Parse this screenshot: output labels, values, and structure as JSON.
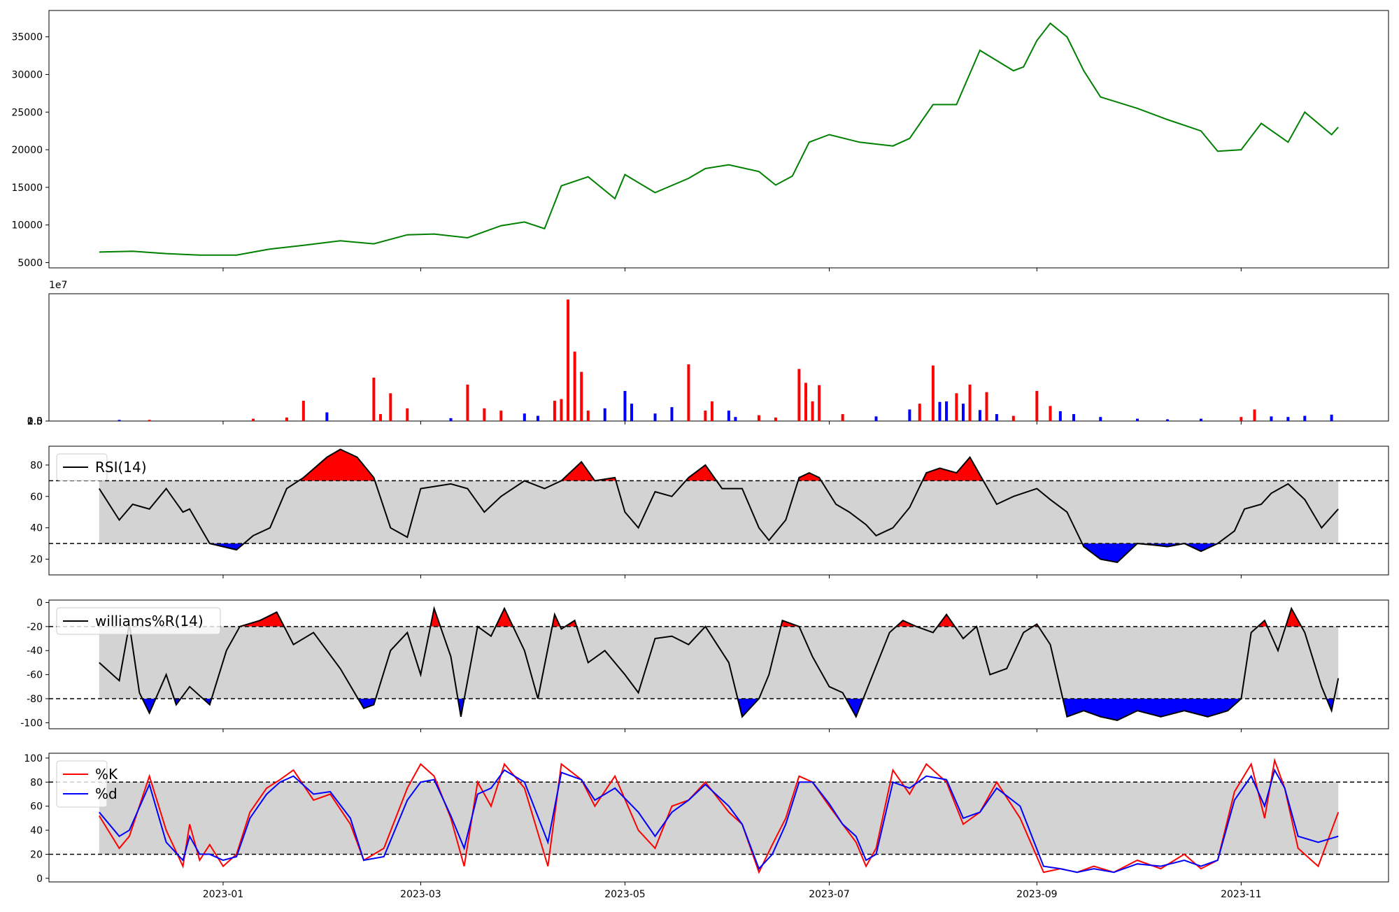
{
  "chart_data": [
    {
      "type": "line",
      "panel": "price",
      "ylim": [
        4300,
        38500
      ],
      "yticks": [
        "5000",
        "10000",
        "15000",
        "20000",
        "25000",
        "30000",
        "35000"
      ],
      "color": "#008000",
      "x": [
        "2022-11-25",
        "2022-12-05",
        "2022-12-15",
        "2022-12-25",
        "2023-01-05",
        "2023-01-15",
        "2023-01-25",
        "2023-02-05",
        "2023-02-15",
        "2023-02-25",
        "2023-03-05",
        "2023-03-15",
        "2023-03-25",
        "2023-04-01",
        "2023-04-07",
        "2023-04-12",
        "2023-04-20",
        "2023-04-28",
        "2023-05-01",
        "2023-05-10",
        "2023-05-20",
        "2023-05-25",
        "2023-06-01",
        "2023-06-10",
        "2023-06-15",
        "2023-06-20",
        "2023-06-25",
        "2023-07-01",
        "2023-07-10",
        "2023-07-20",
        "2023-07-25",
        "2023-08-01",
        "2023-08-08",
        "2023-08-15",
        "2023-08-25",
        "2023-08-28",
        "2023-09-01",
        "2023-09-05",
        "2023-09-10",
        "2023-09-15",
        "2023-09-20",
        "2023-10-01",
        "2023-10-10",
        "2023-10-20",
        "2023-10-25",
        "2023-11-01",
        "2023-11-07",
        "2023-11-15",
        "2023-11-20",
        "2023-11-28",
        "2023-11-30"
      ],
      "values": [
        6400,
        6500,
        6200,
        6000,
        6000,
        6800,
        7300,
        7900,
        7500,
        8700,
        8800,
        8300,
        9900,
        10400,
        9500,
        15200,
        16400,
        13500,
        16700,
        14300,
        16200,
        17500,
        18000,
        17100,
        15300,
        16500,
        21000,
        22000,
        21000,
        20500,
        21500,
        26000,
        26000,
        33200,
        30500,
        31000,
        34500,
        36800,
        35000,
        30500,
        27000,
        25500,
        24000,
        22500,
        19800,
        20000,
        23500,
        21000,
        25000,
        22000,
        23000
      ]
    },
    {
      "type": "bar",
      "panel": "volume",
      "ylim": [
        0,
        22000000
      ],
      "yticks": [
        "0.0",
        "0.5",
        "1.0",
        "1.5",
        "2.0"
      ],
      "offset_label": "1e7",
      "colors": {
        "up": "#ff0000",
        "down": "#0000ff",
        "flat": "#000000"
      },
      "x": [
        "2022-12-01",
        "2022-12-10",
        "2023-01-10",
        "2023-01-20",
        "2023-01-25",
        "2023-02-01",
        "2023-02-15",
        "2023-02-17",
        "2023-02-20",
        "2023-02-25",
        "2023-03-10",
        "2023-03-15",
        "2023-03-20",
        "2023-03-25",
        "2023-04-01",
        "2023-04-05",
        "2023-04-10",
        "2023-04-12",
        "2023-04-14",
        "2023-04-16",
        "2023-04-18",
        "2023-04-20",
        "2023-04-25",
        "2023-05-01",
        "2023-05-03",
        "2023-05-10",
        "2023-05-15",
        "2023-05-20",
        "2023-05-25",
        "2023-05-27",
        "2023-06-01",
        "2023-06-03",
        "2023-06-10",
        "2023-06-15",
        "2023-06-22",
        "2023-06-24",
        "2023-06-26",
        "2023-06-28",
        "2023-07-05",
        "2023-07-15",
        "2023-07-25",
        "2023-07-28",
        "2023-08-01",
        "2023-08-03",
        "2023-08-05",
        "2023-08-08",
        "2023-08-10",
        "2023-08-12",
        "2023-08-15",
        "2023-08-17",
        "2023-08-20",
        "2023-08-25",
        "2023-09-01",
        "2023-09-05",
        "2023-09-08",
        "2023-09-12",
        "2023-09-20",
        "2023-10-01",
        "2023-10-10",
        "2023-10-20",
        "2023-11-01",
        "2023-11-05",
        "2023-11-10",
        "2023-11-15",
        "2023-11-20",
        "2023-11-28"
      ],
      "values": [
        200000,
        200000,
        400000,
        600000,
        3500000,
        1500000,
        7500000,
        1200000,
        4800000,
        2200000,
        500000,
        6300000,
        2200000,
        1800000,
        1300000,
        900000,
        3500000,
        3800000,
        21000000,
        12000000,
        8500000,
        1800000,
        2200000,
        5200000,
        3000000,
        1300000,
        2400000,
        9800000,
        1800000,
        3400000,
        1800000,
        700000,
        1000000,
        600000,
        9000000,
        6600000,
        3400000,
        6200000,
        1200000,
        800000,
        2000000,
        3000000,
        9600000,
        3300000,
        3400000,
        4800000,
        3000000,
        6300000,
        1900000,
        5000000,
        1200000,
        900000,
        5200000,
        2600000,
        1700000,
        1200000,
        700000,
        400000,
        300000,
        400000,
        700000,
        2000000,
        800000,
        700000,
        900000,
        1100000
      ],
      "directions": [
        "down",
        "up",
        "up",
        "up",
        "up",
        "down",
        "up",
        "up",
        "up",
        "up",
        "down",
        "up",
        "up",
        "up",
        "down",
        "down",
        "up",
        "up",
        "up",
        "up",
        "up",
        "up",
        "down",
        "down",
        "down",
        "down",
        "down",
        "up",
        "up",
        "up",
        "down",
        "down",
        "up",
        "up",
        "up",
        "up",
        "up",
        "up",
        "up",
        "down",
        "down",
        "up",
        "up",
        "down",
        "down",
        "up",
        "down",
        "up",
        "down",
        "up",
        "down",
        "up",
        "up",
        "up",
        "down",
        "down",
        "down",
        "down",
        "down",
        "down",
        "up",
        "up",
        "down",
        "down",
        "down",
        "down"
      ]
    },
    {
      "type": "line",
      "panel": "rsi",
      "ylim": [
        10,
        92
      ],
      "yticks": [
        "20",
        "40",
        "60",
        "80"
      ],
      "band": [
        30,
        70
      ],
      "series": [
        {
          "name": "RSI(14)",
          "color": "#000000"
        }
      ],
      "x": [
        "2022-11-25",
        "2022-12-01",
        "2022-12-05",
        "2022-12-10",
        "2022-12-15",
        "2022-12-20",
        "2022-12-22",
        "2022-12-28",
        "2023-01-05",
        "2023-01-10",
        "2023-01-15",
        "2023-01-20",
        "2023-01-25",
        "2023-02-01",
        "2023-02-05",
        "2023-02-10",
        "2023-02-15",
        "2023-02-20",
        "2023-02-25",
        "2023-03-01",
        "2023-03-10",
        "2023-03-15",
        "2023-03-20",
        "2023-03-25",
        "2023-04-01",
        "2023-04-07",
        "2023-04-12",
        "2023-04-18",
        "2023-04-22",
        "2023-04-28",
        "2023-05-01",
        "2023-05-05",
        "2023-05-10",
        "2023-05-15",
        "2023-05-20",
        "2023-05-25",
        "2023-05-30",
        "2023-06-05",
        "2023-06-10",
        "2023-06-13",
        "2023-06-18",
        "2023-06-22",
        "2023-06-25",
        "2023-06-28",
        "2023-07-03",
        "2023-07-07",
        "2023-07-12",
        "2023-07-15",
        "2023-07-20",
        "2023-07-25",
        "2023-07-30",
        "2023-08-03",
        "2023-08-08",
        "2023-08-12",
        "2023-08-16",
        "2023-08-20",
        "2023-08-25",
        "2023-09-01",
        "2023-09-05",
        "2023-09-10",
        "2023-09-15",
        "2023-09-20",
        "2023-09-25",
        "2023-10-01",
        "2023-10-06",
        "2023-10-10",
        "2023-10-15",
        "2023-10-20",
        "2023-10-25",
        "2023-10-30",
        "2023-11-02",
        "2023-11-07",
        "2023-11-10",
        "2023-11-15",
        "2023-11-20",
        "2023-11-25",
        "2023-11-30"
      ],
      "values": [
        65,
        45,
        55,
        52,
        65,
        50,
        52,
        30,
        26,
        35,
        40,
        65,
        72,
        85,
        90,
        85,
        72,
        40,
        34,
        65,
        68,
        65,
        50,
        60,
        70,
        65,
        70,
        82,
        70,
        72,
        50,
        40,
        63,
        60,
        72,
        80,
        65,
        65,
        40,
        32,
        45,
        72,
        75,
        72,
        55,
        50,
        42,
        35,
        40,
        53,
        75,
        78,
        75,
        85,
        70,
        55,
        60,
        65,
        58,
        50,
        28,
        20,
        18,
        30,
        29,
        28,
        30,
        25,
        30,
        38,
        52,
        55,
        62,
        68,
        58,
        40,
        52
      ]
    },
    {
      "type": "line",
      "panel": "williams",
      "ylim": [
        -105,
        2
      ],
      "yticks": [
        "0",
        "-20",
        "-40",
        "-60",
        "-80",
        "-100"
      ],
      "band": [
        -80,
        -20
      ],
      "series": [
        {
          "name": "williams%R(14)",
          "color": "#000000"
        }
      ],
      "x": [
        "2022-11-25",
        "2022-12-01",
        "2022-12-04",
        "2022-12-07",
        "2022-12-10",
        "2022-12-15",
        "2022-12-18",
        "2022-12-22",
        "2022-12-28",
        "2023-01-02",
        "2023-01-06",
        "2023-01-12",
        "2023-01-17",
        "2023-01-22",
        "2023-01-28",
        "2023-02-05",
        "2023-02-12",
        "2023-02-15",
        "2023-02-20",
        "2023-02-25",
        "2023-03-01",
        "2023-03-05",
        "2023-03-10",
        "2023-03-13",
        "2023-03-18",
        "2023-03-22",
        "2023-03-26",
        "2023-04-01",
        "2023-04-05",
        "2023-04-10",
        "2023-04-12",
        "2023-04-16",
        "2023-04-20",
        "2023-04-25",
        "2023-05-01",
        "2023-05-05",
        "2023-05-10",
        "2023-05-15",
        "2023-05-20",
        "2023-05-25",
        "2023-06-01",
        "2023-06-05",
        "2023-06-10",
        "2023-06-13",
        "2023-06-17",
        "2023-06-22",
        "2023-06-26",
        "2023-07-01",
        "2023-07-05",
        "2023-07-09",
        "2023-07-14",
        "2023-07-19",
        "2023-07-23",
        "2023-07-27",
        "2023-08-01",
        "2023-08-05",
        "2023-08-10",
        "2023-08-14",
        "2023-08-18",
        "2023-08-23",
        "2023-08-28",
        "2023-09-01",
        "2023-09-05",
        "2023-09-10",
        "2023-09-15",
        "2023-09-20",
        "2023-09-25",
        "2023-10-01",
        "2023-10-08",
        "2023-10-15",
        "2023-10-22",
        "2023-10-28",
        "2023-11-01",
        "2023-11-04",
        "2023-11-08",
        "2023-11-12",
        "2023-11-16",
        "2023-11-20",
        "2023-11-25",
        "2023-11-28",
        "2023-11-30"
      ],
      "values": [
        -50,
        -65,
        -18,
        -75,
        -92,
        -60,
        -85,
        -70,
        -85,
        -40,
        -20,
        -15,
        -8,
        -35,
        -25,
        -55,
        -88,
        -85,
        -40,
        -25,
        -60,
        -5,
        -45,
        -95,
        -20,
        -28,
        -5,
        -40,
        -80,
        -10,
        -22,
        -15,
        -50,
        -40,
        -60,
        -75,
        -30,
        -28,
        -35,
        -20,
        -50,
        -95,
        -80,
        -60,
        -15,
        -20,
        -45,
        -70,
        -75,
        -95,
        -60,
        -25,
        -15,
        -20,
        -25,
        -10,
        -30,
        -20,
        -60,
        -55,
        -25,
        -18,
        -35,
        -95,
        -90,
        -95,
        -98,
        -90,
        -95,
        -90,
        -95,
        -90,
        -80,
        -25,
        -15,
        -40,
        -5,
        -25,
        -70,
        -90,
        -63
      ]
    },
    {
      "type": "line",
      "panel": "stochastic",
      "ylim": [
        -3,
        104
      ],
      "yticks": [
        "0",
        "20",
        "40",
        "60",
        "80",
        "100"
      ],
      "band": [
        20,
        80
      ],
      "series": [
        {
          "name": "%K",
          "color": "#ff0000",
          "values": [
            52,
            25,
            35,
            85,
            40,
            10,
            45,
            15,
            28,
            10,
            20,
            55,
            75,
            82,
            90,
            65,
            70,
            45,
            15,
            25,
            75,
            95,
            85,
            50,
            10,
            80,
            60,
            95,
            75,
            10,
            95,
            82,
            60,
            85,
            40,
            25,
            60,
            65,
            80,
            55,
            45,
            5,
            28,
            50,
            85,
            80,
            60,
            45,
            30,
            10,
            25,
            90,
            70,
            95,
            80,
            45,
            55,
            80,
            50,
            5,
            8,
            5,
            10,
            5,
            15,
            8,
            20,
            8,
            15,
            72,
            95,
            50,
            98,
            75,
            25,
            10,
            55
          ]
        },
        {
          "name": "%d",
          "color": "#0000ff",
          "values": [
            55,
            35,
            40,
            78,
            30,
            15,
            35,
            20,
            20,
            15,
            18,
            50,
            70,
            80,
            85,
            70,
            72,
            50,
            15,
            18,
            65,
            80,
            82,
            52,
            25,
            70,
            75,
            90,
            80,
            30,
            88,
            82,
            65,
            75,
            55,
            35,
            55,
            65,
            78,
            60,
            45,
            8,
            20,
            45,
            80,
            80,
            62,
            45,
            35,
            15,
            20,
            80,
            75,
            85,
            82,
            50,
            55,
            75,
            60,
            10,
            8,
            5,
            8,
            5,
            12,
            10,
            15,
            10,
            15,
            65,
            85,
            60,
            90,
            75,
            35,
            30,
            35
          ]
        }
      ],
      "x": [
        "2022-11-25",
        "2022-12-01",
        "2022-12-04",
        "2022-12-10",
        "2022-12-15",
        "2022-12-20",
        "2022-12-22",
        "2022-12-25",
        "2022-12-28",
        "2023-01-01",
        "2023-01-05",
        "2023-01-09",
        "2023-01-14",
        "2023-01-18",
        "2023-01-22",
        "2023-01-28",
        "2023-02-02",
        "2023-02-08",
        "2023-02-12",
        "2023-02-18",
        "2023-02-25",
        "2023-03-01",
        "2023-03-05",
        "2023-03-10",
        "2023-03-14",
        "2023-03-18",
        "2023-03-22",
        "2023-03-26",
        "2023-04-01",
        "2023-04-08",
        "2023-04-12",
        "2023-04-18",
        "2023-04-22",
        "2023-04-28",
        "2023-05-05",
        "2023-05-10",
        "2023-05-15",
        "2023-05-20",
        "2023-05-25",
        "2023-06-01",
        "2023-06-05",
        "2023-06-10",
        "2023-06-14",
        "2023-06-18",
        "2023-06-22",
        "2023-06-26",
        "2023-07-01",
        "2023-07-05",
        "2023-07-09",
        "2023-07-12",
        "2023-07-15",
        "2023-07-20",
        "2023-07-25",
        "2023-07-30",
        "2023-08-05",
        "2023-08-10",
        "2023-08-15",
        "2023-08-20",
        "2023-08-27",
        "2023-09-03",
        "2023-09-08",
        "2023-09-13",
        "2023-09-18",
        "2023-09-24",
        "2023-10-01",
        "2023-10-08",
        "2023-10-15",
        "2023-10-20",
        "2023-10-25",
        "2023-10-30",
        "2023-11-04",
        "2023-11-08",
        "2023-11-11",
        "2023-11-14",
        "2023-11-18",
        "2023-11-24",
        "2023-11-30"
      ]
    }
  ],
  "x_axis": {
    "tick_labels": [
      "2023-01",
      "2023-03",
      "2023-05",
      "2023-07",
      "2023-09",
      "2023-11"
    ],
    "start": "2022-11-10",
    "end": "2023-12-15"
  }
}
